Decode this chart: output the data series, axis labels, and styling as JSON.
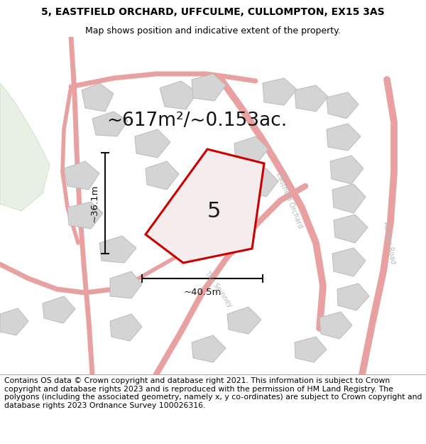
{
  "title_line1": "5, EASTFIELD ORCHARD, UFFCULME, CULLOMPTON, EX15 3AS",
  "title_line2": "Map shows position and indicative extent of the property.",
  "footer_text": "Contains OS data © Crown copyright and database right 2021. This information is subject to Crown copyright and database rights 2023 and is reproduced with the permission of HM Land Registry. The polygons (including the associated geometry, namely x, y co-ordinates) are subject to Crown copyright and database rights 2023 Ordnance Survey 100026316.",
  "area_text": "~617m²/~0.153ac.",
  "plot_number": "5",
  "dim_width": "~40.5m",
  "dim_height": "~36.1m",
  "background_color": "#ffffff",
  "map_bg_color": "#f7f4f0",
  "road_color": "#e8a0a0",
  "road_fill_color": "#f5d0d0",
  "building_color": "#d4d4d4",
  "building_edge_color": "#bbbbbb",
  "plot_fill": "#f5eded",
  "plot_edge_color": "#cc0000",
  "green_patch_color": "#e8f0e4",
  "green_patch_edge": "#c8d8c4",
  "road_label_color": "#b8b8b8",
  "title_fontsize": 10,
  "subtitle_fontsize": 9,
  "footer_fontsize": 7.8,
  "area_fontsize": 19,
  "plot_num_fontsize": 22,
  "dim_fontsize": 9.5
}
